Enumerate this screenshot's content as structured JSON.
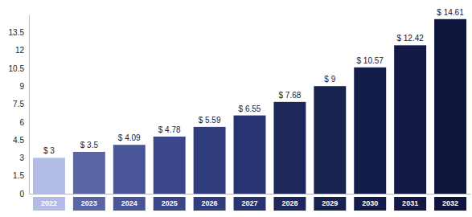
{
  "chart_data": {
    "type": "bar",
    "categories": [
      "2022",
      "2023",
      "2024",
      "2025",
      "2026",
      "2027",
      "2028",
      "2029",
      "2030",
      "2031",
      "2032"
    ],
    "values": [
      3,
      3.5,
      4.09,
      4.78,
      5.59,
      6.55,
      7.68,
      9,
      10.57,
      12.42,
      14.61
    ],
    "value_labels": [
      "$ 3",
      "$ 3.5",
      "$ 4.09",
      "$ 4.78",
      "$ 5.59",
      "$ 6.55",
      "$ 7.68",
      "$ 9",
      "$ 10.57",
      "$ 12.42",
      "$ 14.61"
    ],
    "colors": [
      "#b3bce4",
      "#5a65a5",
      "#4a5597",
      "#3c478a",
      "#323d7e",
      "#283371",
      "#1d2759",
      "#18224f",
      "#141d4a",
      "#111944",
      "#0e163e"
    ],
    "ylim": [
      0,
      15
    ],
    "yticks": [
      0,
      1.5,
      3,
      4.5,
      6,
      7.5,
      9,
      10.5,
      12,
      13.5
    ],
    "grid": false,
    "data_labels": true
  }
}
